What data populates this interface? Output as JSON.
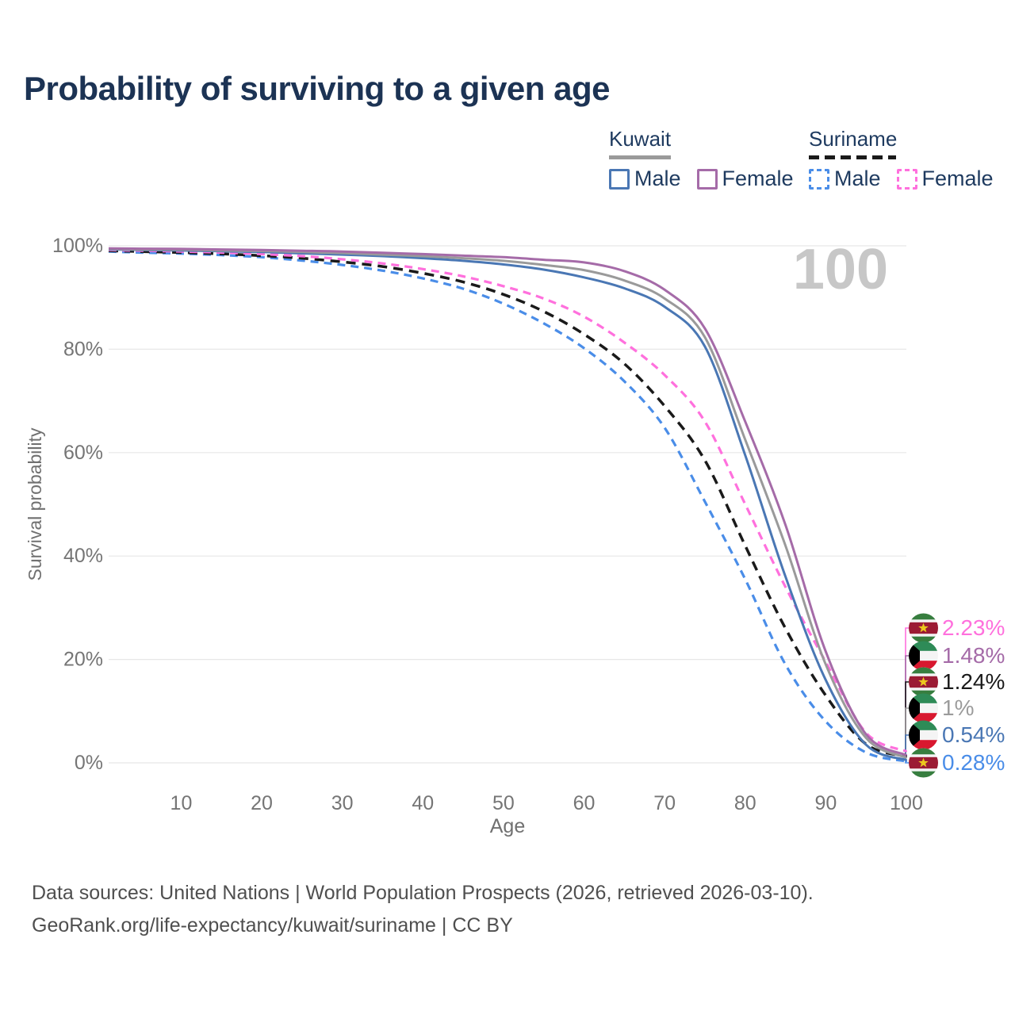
{
  "title": "Probability of surviving to a given age",
  "legend": {
    "kuwait": {
      "country": "Kuwait",
      "line_style": "solid",
      "line_color": "#9a9a9a",
      "male_label": "Male",
      "male_color": "#4a77b4",
      "female_label": "Female",
      "female_color": "#a56ba8"
    },
    "suriname": {
      "country": "Suriname",
      "line_style": "dashed",
      "line_color": "#1a1a1a",
      "male_label": "Male",
      "male_color": "#4a8de8",
      "female_label": "Female",
      "female_color": "#ff70dd"
    }
  },
  "watermark_age": "100",
  "footer": {
    "line1": "Data sources: United Nations | World Population Prospects (2026, retrieved 2026-03-10).",
    "line2": "GeoRank.org/life-expectancy/kuwait/suriname | CC BY"
  },
  "chart_data": {
    "type": "line",
    "title": "Probability of surviving to a given age",
    "xlabel": "Age",
    "ylabel": "Survival probability",
    "xlim": [
      1,
      100
    ],
    "ylim": [
      0,
      100
    ],
    "grid": "horizontal",
    "x_ticks": [
      10,
      20,
      30,
      40,
      50,
      60,
      70,
      80,
      90,
      100
    ],
    "y_ticks": [
      {
        "v": 0,
        "label": "0%"
      },
      {
        "v": 20,
        "label": "20%"
      },
      {
        "v": 40,
        "label": "40%"
      },
      {
        "v": 60,
        "label": "60%"
      },
      {
        "v": 80,
        "label": "80%"
      },
      {
        "v": 100,
        "label": "100%"
      }
    ],
    "ages": [
      1,
      5,
      10,
      15,
      20,
      25,
      30,
      35,
      40,
      45,
      50,
      55,
      60,
      65,
      70,
      75,
      80,
      85,
      90,
      95,
      100
    ],
    "series": [
      {
        "name": "suriname-male",
        "country": "Suriname",
        "sex": "Male",
        "color": "#4a8de8",
        "dash": "10 7",
        "width": 3.2,
        "values": [
          98.9,
          98.7,
          98.5,
          98.2,
          97.8,
          97.15,
          96.3,
          95.2,
          93.7,
          91.7,
          88.8,
          85.0,
          80.2,
          73.8,
          64.8,
          50.5,
          35.5,
          19.0,
          8.0,
          2.0,
          0.28
        ]
      },
      {
        "name": "suriname-all",
        "country": "Suriname",
        "sex": "Both",
        "color": "#1a1a1a",
        "dash": "12 8",
        "width": 3.5,
        "values": [
          99.05,
          98.9,
          98.7,
          98.45,
          98.1,
          97.6,
          96.9,
          96.0,
          94.7,
          93.0,
          90.6,
          87.3,
          82.9,
          77.2,
          69.0,
          58.5,
          42.0,
          26.0,
          13.0,
          3.6,
          1.24
        ]
      },
      {
        "name": "suriname-female",
        "country": "Suriname",
        "sex": "Female",
        "color": "#ff70dd",
        "dash": "10 7",
        "width": 3.2,
        "values": [
          99.2,
          99.05,
          98.9,
          98.7,
          98.4,
          98.0,
          97.4,
          96.6,
          95.5,
          94.1,
          92.2,
          89.8,
          86.3,
          81.3,
          75.0,
          66.0,
          50.0,
          34.0,
          19.5,
          5.8,
          2.23
        ]
      },
      {
        "name": "kuwait-male",
        "country": "Kuwait",
        "sex": "Male",
        "color": "#4a77b4",
        "dash": null,
        "width": 3,
        "values": [
          99.3,
          99.2,
          99.1,
          98.95,
          98.8,
          98.55,
          98.3,
          98.0,
          97.6,
          97.1,
          96.4,
          95.4,
          93.9,
          91.8,
          88.2,
          80.5,
          59.5,
          36.0,
          16.0,
          3.5,
          0.54
        ]
      },
      {
        "name": "kuwait-all",
        "country": "Kuwait",
        "sex": "Both",
        "color": "#9a9a9a",
        "dash": null,
        "width": 3,
        "values": [
          99.4,
          99.3,
          99.25,
          99.1,
          99.0,
          98.8,
          98.6,
          98.3,
          98.0,
          97.6,
          97.1,
          96.3,
          95.3,
          93.3,
          89.8,
          82.3,
          62.5,
          42.0,
          19.0,
          4.8,
          1.0
        ]
      },
      {
        "name": "kuwait-female",
        "country": "Kuwait",
        "sex": "Female",
        "color": "#a56ba8",
        "dash": null,
        "width": 3,
        "values": [
          99.5,
          99.45,
          99.4,
          99.3,
          99.2,
          99.05,
          98.9,
          98.65,
          98.4,
          98.1,
          97.8,
          97.3,
          96.8,
          95.1,
          91.5,
          84.0,
          66.0,
          46.0,
          21.5,
          5.5,
          1.48
        ]
      }
    ],
    "end_labels": [
      {
        "text": "2.23%",
        "value": 2.23,
        "color": "#ff70dd",
        "flag": "sr",
        "series": "suriname-female"
      },
      {
        "text": "1.48%",
        "value": 1.48,
        "color": "#a56ba8",
        "flag": "kw",
        "series": "kuwait-female"
      },
      {
        "text": "1.24%",
        "value": 1.24,
        "color": "#1a1a1a",
        "flag": "sr",
        "series": "suriname-all"
      },
      {
        "text": "1%",
        "value": 1.0,
        "color": "#9b9b9b",
        "flag": "kw",
        "series": "kuwait-all"
      },
      {
        "text": "0.54%",
        "value": 0.54,
        "color": "#4a77b4",
        "flag": "kw",
        "series": "kuwait-male"
      },
      {
        "text": "0.28%",
        "value": 0.28,
        "color": "#4a8de8",
        "flag": "sr",
        "series": "suriname-male"
      }
    ],
    "style": {
      "grid_color": "#e7e7e7",
      "tick_color": "#757575",
      "axis_label_color": "#707070",
      "watermark_color": "#c7c7c7"
    }
  }
}
